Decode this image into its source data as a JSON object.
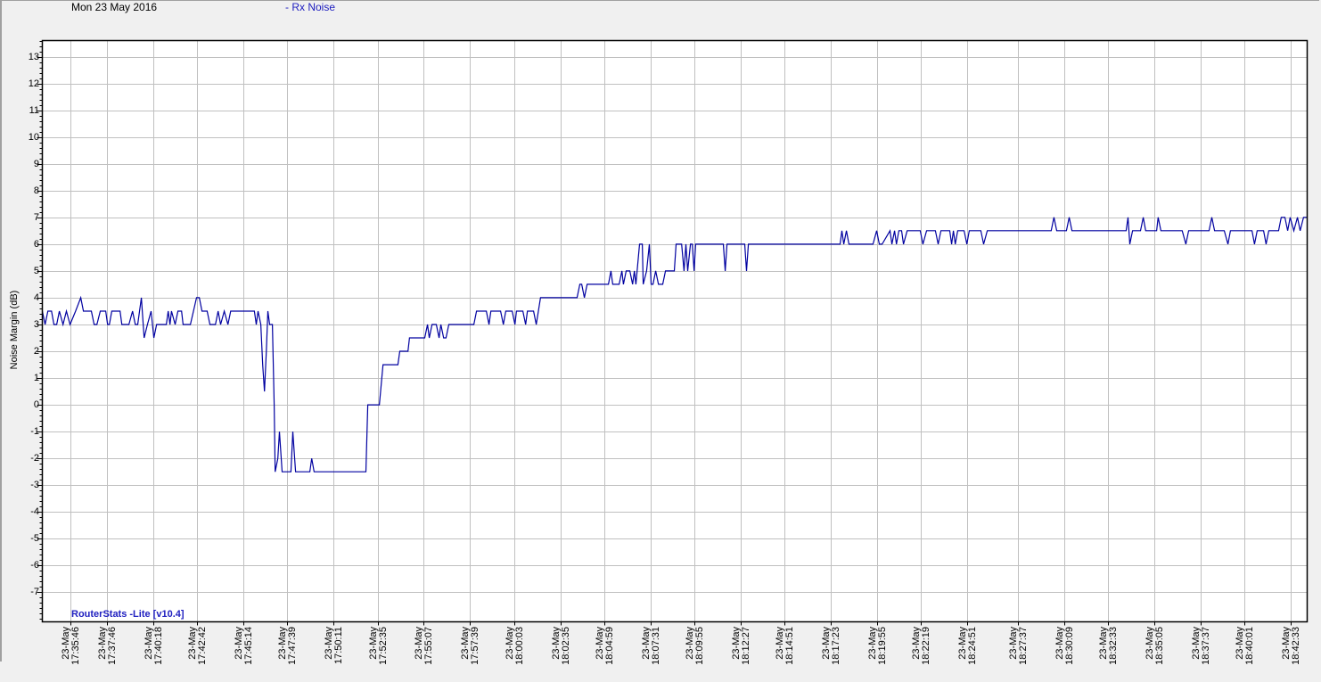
{
  "header": {
    "date": "Mon 23 May 2016",
    "series_label": "- Rx Noise"
  },
  "watermark": "RouterStats -Lite [v10.4]",
  "colors": {
    "line": "#0000a0",
    "grid": "#c0c0c0",
    "background": "#f0f0f0",
    "plot": "#ffffff",
    "label_blue": "#2020c0"
  },
  "chart_data": {
    "type": "line",
    "title": "",
    "ylabel": "Noise Margin (dB)",
    "xlabel": "",
    "ylim": [
      -8.1,
      13.6
    ],
    "yticks": [
      -7,
      -6,
      -5,
      -4,
      -3,
      -2,
      -1,
      0,
      1,
      2,
      3,
      4,
      5,
      6,
      7,
      8,
      9,
      10,
      11,
      12,
      13
    ],
    "xlim": [
      "17:34:15",
      "18:43:26"
    ],
    "grid": true,
    "xticks": [
      {
        "date": "23-May",
        "time": "17:35:46"
      },
      {
        "date": "23-May",
        "time": "17:37:46"
      },
      {
        "date": "23-May",
        "time": "17:40:18"
      },
      {
        "date": "23-May",
        "time": "17:42:42"
      },
      {
        "date": "23-May",
        "time": "17:45:14"
      },
      {
        "date": "23-May",
        "time": "17:47:39"
      },
      {
        "date": "23-May",
        "time": "17:50:11"
      },
      {
        "date": "23-May",
        "time": "17:52:35"
      },
      {
        "date": "23-May",
        "time": "17:55:07"
      },
      {
        "date": "23-May",
        "time": "17:57:39"
      },
      {
        "date": "23-May",
        "time": "18:00:03"
      },
      {
        "date": "23-May",
        "time": "18:02:35"
      },
      {
        "date": "23-May",
        "time": "18:04:59"
      },
      {
        "date": "23-May",
        "time": "18:07:31"
      },
      {
        "date": "23-May",
        "time": "18:09:55"
      },
      {
        "date": "23-May",
        "time": "18:12:27"
      },
      {
        "date": "23-May",
        "time": "18:14:51"
      },
      {
        "date": "23-May",
        "time": "18:17:23"
      },
      {
        "date": "23-May",
        "time": "18:19:55"
      },
      {
        "date": "23-May",
        "time": "18:22:19"
      },
      {
        "date": "23-May",
        "time": "18:24:51"
      },
      {
        "date": "23-May",
        "time": "18:27:37"
      },
      {
        "date": "23-May",
        "time": "18:30:09"
      },
      {
        "date": "23-May",
        "time": "18:32:33"
      },
      {
        "date": "23-May",
        "time": "18:35:05"
      },
      {
        "date": "23-May",
        "time": "18:37:37"
      },
      {
        "date": "23-May",
        "time": "18:40:01"
      },
      {
        "date": "23-May",
        "time": "18:42:33"
      }
    ],
    "series": [
      {
        "name": "Rx Noise",
        "points": [
          [
            "17:34:15",
            3.5
          ],
          [
            "17:34:24",
            3
          ],
          [
            "17:34:33",
            3.5
          ],
          [
            "17:34:45",
            3.5
          ],
          [
            "17:34:53",
            3
          ],
          [
            "17:35:02",
            3
          ],
          [
            "17:35:11",
            3.5
          ],
          [
            "17:35:23",
            3
          ],
          [
            "17:35:34",
            3.5
          ],
          [
            "17:35:46",
            3
          ],
          [
            "17:36:04",
            3.5
          ],
          [
            "17:36:21",
            4
          ],
          [
            "17:36:30",
            3.5
          ],
          [
            "17:36:56",
            3.5
          ],
          [
            "17:37:05",
            3
          ],
          [
            "17:37:14",
            3
          ],
          [
            "17:37:25",
            3.5
          ],
          [
            "17:37:43",
            3.5
          ],
          [
            "17:37:49",
            3
          ],
          [
            "17:37:55",
            3
          ],
          [
            "17:38:03",
            3.5
          ],
          [
            "17:38:30",
            3.5
          ],
          [
            "17:38:36",
            3
          ],
          [
            "17:38:59",
            3
          ],
          [
            "17:39:11",
            3.5
          ],
          [
            "17:39:20",
            3
          ],
          [
            "17:39:28",
            3
          ],
          [
            "17:39:40",
            4
          ],
          [
            "17:39:49",
            2.5
          ],
          [
            "17:40:00",
            3
          ],
          [
            "17:40:12",
            3.5
          ],
          [
            "17:40:21",
            2.5
          ],
          [
            "17:40:30",
            3
          ],
          [
            "17:41:02",
            3
          ],
          [
            "17:41:08",
            3.5
          ],
          [
            "17:41:14",
            3
          ],
          [
            "17:41:19",
            3.5
          ],
          [
            "17:41:31",
            3
          ],
          [
            "17:41:40",
            3.5
          ],
          [
            "17:41:52",
            3.5
          ],
          [
            "17:41:57",
            3
          ],
          [
            "17:42:21",
            3
          ],
          [
            "17:42:41",
            4
          ],
          [
            "17:42:50",
            4
          ],
          [
            "17:42:59",
            3.5
          ],
          [
            "17:43:16",
            3.5
          ],
          [
            "17:43:25",
            3
          ],
          [
            "17:43:43",
            3
          ],
          [
            "17:43:52",
            3.5
          ],
          [
            "17:44:00",
            3
          ],
          [
            "17:44:12",
            3.5
          ],
          [
            "17:44:24",
            3
          ],
          [
            "17:44:33",
            3.5
          ],
          [
            "17:45:02",
            3.5
          ],
          [
            "17:45:51",
            3.5
          ],
          [
            "17:45:57",
            3
          ],
          [
            "17:46:03",
            3.5
          ],
          [
            "17:46:12",
            3
          ],
          [
            "17:46:18",
            1.5
          ],
          [
            "17:46:24",
            0.5
          ],
          [
            "17:46:30",
            2
          ],
          [
            "17:46:35",
            3.5
          ],
          [
            "17:46:41",
            3
          ],
          [
            "17:46:50",
            3
          ],
          [
            "17:46:56",
            0
          ],
          [
            "17:46:59",
            -2.5
          ],
          [
            "17:47:08",
            -2
          ],
          [
            "17:47:13",
            -1
          ],
          [
            "17:47:22",
            -2.5
          ],
          [
            "17:47:51",
            -2.5
          ],
          [
            "17:47:57",
            -1
          ],
          [
            "17:48:06",
            -2.5
          ],
          [
            "17:48:53",
            -2.5
          ],
          [
            "17:48:59",
            -2
          ],
          [
            "17:49:07",
            -2.5
          ],
          [
            "17:51:57",
            -2.5
          ],
          [
            "17:52:03",
            0
          ],
          [
            "17:52:41",
            0
          ],
          [
            "17:52:53",
            1.5
          ],
          [
            "17:53:42",
            1.5
          ],
          [
            "17:53:48",
            2
          ],
          [
            "17:54:15",
            2
          ],
          [
            "17:54:20",
            2.5
          ],
          [
            "17:55:10",
            2.5
          ],
          [
            "17:55:19",
            3
          ],
          [
            "17:55:25",
            2.5
          ],
          [
            "17:55:34",
            3
          ],
          [
            "17:55:48",
            3
          ],
          [
            "17:55:57",
            2.5
          ],
          [
            "17:56:03",
            3
          ],
          [
            "17:56:12",
            2.5
          ],
          [
            "17:56:20",
            2.5
          ],
          [
            "17:56:29",
            3
          ],
          [
            "17:57:51",
            3
          ],
          [
            "17:58:00",
            3.5
          ],
          [
            "17:58:32",
            3.5
          ],
          [
            "17:58:41",
            3
          ],
          [
            "17:58:47",
            3.5
          ],
          [
            "17:59:19",
            3.5
          ],
          [
            "17:59:28",
            3
          ],
          [
            "17:59:36",
            3.5
          ],
          [
            "17:59:57",
            3.5
          ],
          [
            "18:00:06",
            3
          ],
          [
            "18:00:11",
            3.5
          ],
          [
            "18:00:32",
            3.5
          ],
          [
            "18:00:41",
            3
          ],
          [
            "18:00:47",
            3.5
          ],
          [
            "18:01:07",
            3.5
          ],
          [
            "18:01:16",
            3
          ],
          [
            "18:01:30",
            4
          ],
          [
            "18:03:30",
            4
          ],
          [
            "18:03:39",
            4.5
          ],
          [
            "18:03:45",
            4.5
          ],
          [
            "18:03:54",
            4
          ],
          [
            "18:04:03",
            4.5
          ],
          [
            "18:05:13",
            4.5
          ],
          [
            "18:05:21",
            5
          ],
          [
            "18:05:27",
            4.5
          ],
          [
            "18:05:48",
            4.5
          ],
          [
            "18:05:57",
            5
          ],
          [
            "18:06:02",
            4.5
          ],
          [
            "18:06:11",
            5
          ],
          [
            "18:06:23",
            5
          ],
          [
            "18:06:32",
            4.5
          ],
          [
            "18:06:38",
            5
          ],
          [
            "18:06:43",
            4.5
          ],
          [
            "18:06:55",
            6
          ],
          [
            "18:07:04",
            6
          ],
          [
            "18:07:07",
            4.5
          ],
          [
            "18:07:18",
            5
          ],
          [
            "18:07:27",
            6
          ],
          [
            "18:07:33",
            4.5
          ],
          [
            "18:07:39",
            4.5
          ],
          [
            "18:07:48",
            5
          ],
          [
            "18:07:57",
            4.5
          ],
          [
            "18:08:11",
            4.5
          ],
          [
            "18:08:20",
            5
          ],
          [
            "18:08:49",
            5
          ],
          [
            "18:08:55",
            6
          ],
          [
            "18:09:13",
            6
          ],
          [
            "18:09:21",
            5
          ],
          [
            "18:09:27",
            6
          ],
          [
            "18:09:33",
            5
          ],
          [
            "18:09:42",
            6
          ],
          [
            "18:09:48",
            6
          ],
          [
            "18:09:54",
            5
          ],
          [
            "18:09:59",
            6
          ],
          [
            "18:11:30",
            6
          ],
          [
            "18:11:36",
            5
          ],
          [
            "18:11:42",
            6
          ],
          [
            "18:12:40",
            6
          ],
          [
            "18:12:46",
            5
          ],
          [
            "18:12:52",
            6
          ],
          [
            "18:17:53",
            6
          ],
          [
            "18:17:59",
            6.5
          ],
          [
            "18:18:05",
            6
          ],
          [
            "18:18:14",
            6.5
          ],
          [
            "18:18:22",
            6
          ],
          [
            "18:19:41",
            6
          ],
          [
            "18:19:53",
            6.5
          ],
          [
            "18:20:02",
            6
          ],
          [
            "18:20:11",
            6
          ],
          [
            "18:20:37",
            6.5
          ],
          [
            "18:20:43",
            6
          ],
          [
            "18:20:52",
            6.5
          ],
          [
            "18:20:58",
            6
          ],
          [
            "18:21:06",
            6.5
          ],
          [
            "18:21:15",
            6.5
          ],
          [
            "18:21:21",
            6
          ],
          [
            "18:21:33",
            6.5
          ],
          [
            "18:22:16",
            6.5
          ],
          [
            "18:22:25",
            6
          ],
          [
            "18:22:37",
            6.5
          ],
          [
            "18:23:06",
            6.5
          ],
          [
            "18:23:15",
            6
          ],
          [
            "18:23:24",
            6.5
          ],
          [
            "18:23:53",
            6.5
          ],
          [
            "18:23:59",
            6
          ],
          [
            "18:24:05",
            6.5
          ],
          [
            "18:24:11",
            6
          ],
          [
            "18:24:19",
            6.5
          ],
          [
            "18:24:40",
            6.5
          ],
          [
            "18:24:49",
            6
          ],
          [
            "18:24:57",
            6.5
          ],
          [
            "18:25:35",
            6.5
          ],
          [
            "18:25:44",
            6
          ],
          [
            "18:25:56",
            6.5
          ],
          [
            "18:29:26",
            6.5
          ],
          [
            "18:29:35",
            7
          ],
          [
            "18:29:44",
            6.5
          ],
          [
            "18:30:16",
            6.5
          ],
          [
            "18:30:25",
            7
          ],
          [
            "18:30:34",
            6.5
          ],
          [
            "18:33:32",
            6.5
          ],
          [
            "18:33:38",
            7
          ],
          [
            "18:33:44",
            6
          ],
          [
            "18:33:53",
            6.5
          ],
          [
            "18:34:19",
            6.5
          ],
          [
            "18:34:28",
            7
          ],
          [
            "18:34:36",
            6.5
          ],
          [
            "18:35:12",
            6.5
          ],
          [
            "18:35:17",
            7
          ],
          [
            "18:35:26",
            6.5
          ],
          [
            "18:36:36",
            6.5
          ],
          [
            "18:36:48",
            6
          ],
          [
            "18:36:57",
            6.5
          ],
          [
            "18:38:04",
            6.5
          ],
          [
            "18:38:13",
            7
          ],
          [
            "18:38:22",
            6.5
          ],
          [
            "18:38:54",
            6.5
          ],
          [
            "18:39:06",
            6
          ],
          [
            "18:39:14",
            6.5
          ],
          [
            "18:40:25",
            6.5
          ],
          [
            "18:40:33",
            6
          ],
          [
            "18:40:42",
            6.5
          ],
          [
            "18:41:03",
            6.5
          ],
          [
            "18:41:11",
            6
          ],
          [
            "18:41:20",
            6.5
          ],
          [
            "18:41:52",
            6.5
          ],
          [
            "18:42:01",
            7
          ],
          [
            "18:42:13",
            7
          ],
          [
            "18:42:22",
            6.5
          ],
          [
            "18:42:30",
            7
          ],
          [
            "18:42:42",
            6.5
          ],
          [
            "18:42:54",
            7
          ],
          [
            "18:43:03",
            6.5
          ],
          [
            "18:43:14",
            7
          ],
          [
            "18:43:26",
            7
          ]
        ]
      }
    ]
  }
}
